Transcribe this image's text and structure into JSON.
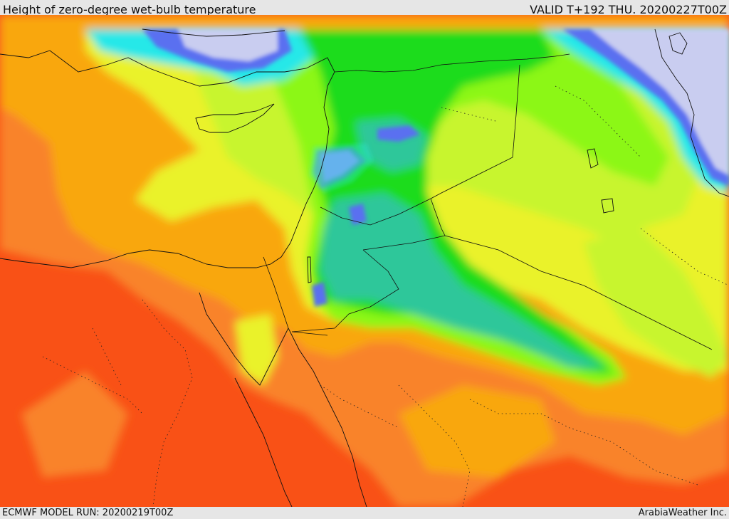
{
  "header": {
    "title": "Height of zero-degree wet-bulb temperature",
    "valid_time": "VALID T+192 THU. 20200227T00Z"
  },
  "footer": {
    "model_run": "ECMWF MODEL RUN: 20200219T00Z",
    "credit": "ArabiaWeather Inc."
  },
  "palette": {
    "red": "#f95116",
    "dark_orange": "#f9832a",
    "orange": "#f9a707",
    "yellow": "#eaf22c",
    "yellow_green": "#c8f52e",
    "light_green": "#8cf718",
    "green": "#1bdc1b",
    "teal": "#2ec79a",
    "cyan": "#27e8e8",
    "light_blue": "#45b8f5",
    "blue": "#5a6ff0",
    "lavender": "#c9cdf0"
  }
}
